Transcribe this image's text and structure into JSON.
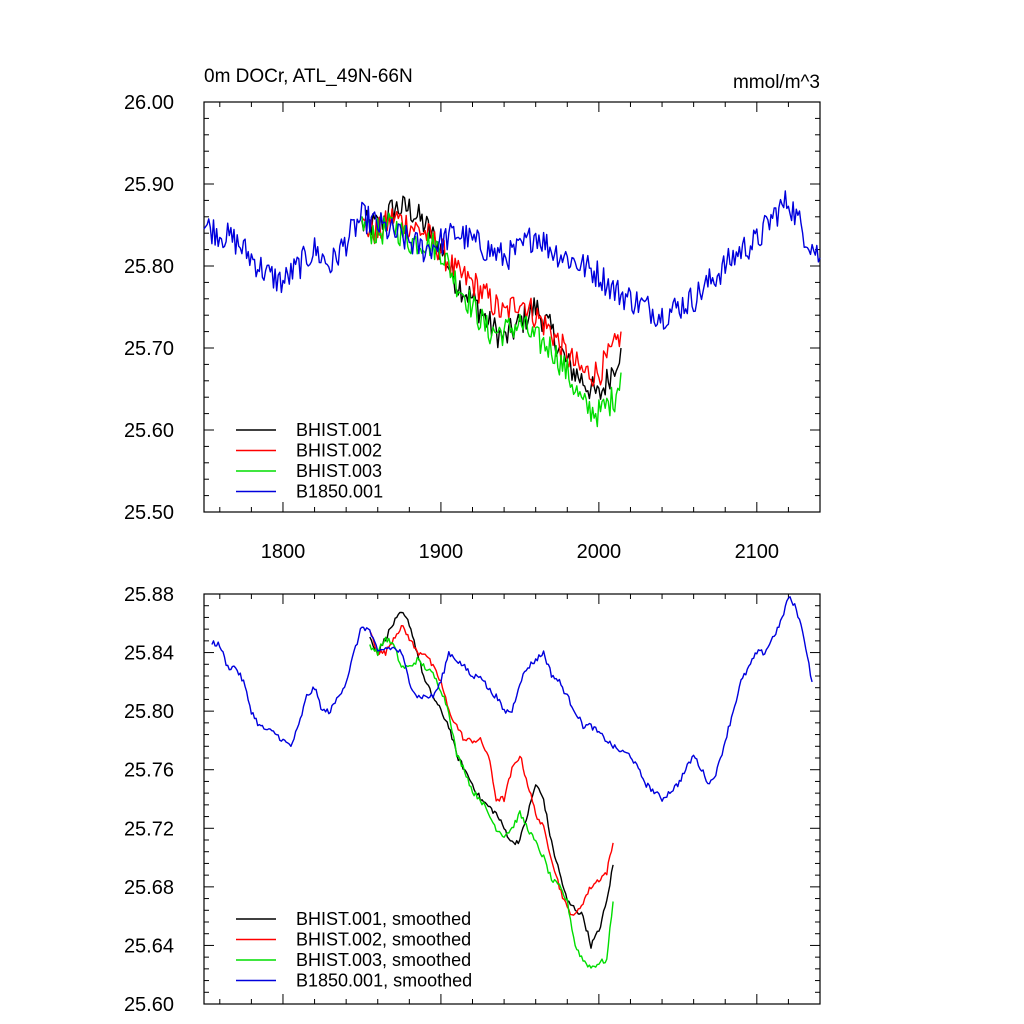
{
  "colors": {
    "BHIST.001": "#000000",
    "BHIST.002": "#ff0000",
    "BHIST.003": "#00dd00",
    "B1850.001": "#0000dd"
  },
  "chart_data": [
    {
      "type": "line",
      "title_left": "0m DOCr, ATL_49N-66N",
      "title_right": "mmol/m^3",
      "xlim": [
        1750,
        2140
      ],
      "ylim": [
        25.5,
        26.0
      ],
      "xticks": [
        1800,
        1900,
        2000,
        2100
      ],
      "xtick_labels": [
        "1800",
        "1900",
        "2000",
        "2100"
      ],
      "yticks": [
        25.5,
        25.6,
        25.7,
        25.8,
        25.9,
        26.0
      ],
      "ytick_labels": [
        "25.50",
        "25.60",
        "25.70",
        "25.80",
        "25.90",
        "26.00"
      ],
      "legend_position": "bottom-left",
      "noise": 0.018,
      "series": [
        {
          "name": "BHIST.001",
          "x": [
            1850,
            1860,
            1870,
            1880,
            1890,
            1900,
            1910,
            1920,
            1930,
            1940,
            1950,
            1960,
            1970,
            1980,
            1990,
            2000,
            2010,
            2014
          ],
          "values": [
            25.85,
            25.85,
            25.87,
            25.87,
            25.85,
            25.82,
            25.78,
            25.76,
            25.73,
            25.71,
            25.73,
            25.75,
            25.72,
            25.68,
            25.66,
            25.64,
            25.68,
            25.7
          ]
        },
        {
          "name": "BHIST.002",
          "x": [
            1850,
            1860,
            1870,
            1880,
            1890,
            1900,
            1910,
            1920,
            1930,
            1940,
            1950,
            1960,
            1970,
            1980,
            1990,
            2000,
            2010,
            2014
          ],
          "values": [
            25.85,
            25.84,
            25.86,
            25.85,
            25.84,
            25.82,
            25.79,
            25.78,
            25.76,
            25.74,
            25.76,
            25.74,
            25.72,
            25.69,
            25.67,
            25.67,
            25.7,
            25.72
          ]
        },
        {
          "name": "BHIST.003",
          "x": [
            1850,
            1860,
            1870,
            1880,
            1890,
            1900,
            1910,
            1920,
            1930,
            1940,
            1950,
            1960,
            1970,
            1980,
            1990,
            2000,
            2010,
            2014
          ],
          "values": [
            25.85,
            25.84,
            25.85,
            25.83,
            25.83,
            25.82,
            25.78,
            25.75,
            25.72,
            25.72,
            25.73,
            25.71,
            25.7,
            25.67,
            25.63,
            25.62,
            25.64,
            25.67
          ]
        },
        {
          "name": "B1850.001",
          "x": [
            1750,
            1760,
            1770,
            1780,
            1790,
            1800,
            1810,
            1820,
            1830,
            1840,
            1850,
            1860,
            1870,
            1880,
            1890,
            1900,
            1910,
            1920,
            1930,
            1940,
            1950,
            1960,
            1970,
            1980,
            1990,
            2000,
            2010,
            2020,
            2030,
            2040,
            2050,
            2060,
            2070,
            2080,
            2090,
            2100,
            2110,
            2120,
            2130,
            2140
          ],
          "values": [
            25.85,
            25.84,
            25.83,
            25.81,
            25.79,
            25.78,
            25.8,
            25.82,
            25.8,
            25.83,
            25.86,
            25.85,
            25.84,
            25.83,
            25.82,
            25.83,
            25.84,
            25.83,
            25.82,
            25.81,
            25.82,
            25.84,
            25.82,
            25.81,
            25.8,
            25.79,
            25.77,
            25.76,
            25.75,
            25.74,
            25.75,
            25.76,
            25.78,
            25.8,
            25.82,
            25.83,
            25.86,
            25.88,
            25.84,
            25.81
          ]
        }
      ]
    },
    {
      "type": "line",
      "xlim": [
        1750,
        2140
      ],
      "ylim": [
        25.6,
        25.88
      ],
      "xticks": [
        1800,
        1900,
        2000,
        2100
      ],
      "yticks": [
        25.6,
        25.64,
        25.68,
        25.72,
        25.76,
        25.8,
        25.84,
        25.88
      ],
      "ytick_labels": [
        "25.60",
        "25.64",
        "25.68",
        "25.72",
        "25.76",
        "25.80",
        "25.84",
        "25.88"
      ],
      "legend_position": "bottom-left",
      "noise": 0.002,
      "series": [
        {
          "name": "BHIST.001, smoothed",
          "x": [
            1855,
            1860,
            1865,
            1870,
            1875,
            1880,
            1885,
            1890,
            1895,
            1900,
            1905,
            1910,
            1915,
            1920,
            1925,
            1930,
            1935,
            1940,
            1945,
            1950,
            1955,
            1960,
            1965,
            1970,
            1975,
            1980,
            1985,
            1990,
            1995,
            2000,
            2005,
            2009
          ],
          "values": [
            25.85,
            25.84,
            25.85,
            25.86,
            25.867,
            25.86,
            25.84,
            25.82,
            25.81,
            25.8,
            25.79,
            25.77,
            25.76,
            25.75,
            25.74,
            25.735,
            25.73,
            25.72,
            25.71,
            25.712,
            25.73,
            25.75,
            25.74,
            25.71,
            25.69,
            25.67,
            25.665,
            25.66,
            25.64,
            25.65,
            25.67,
            25.695
          ]
        },
        {
          "name": "BHIST.002, smoothed",
          "x": [
            1855,
            1860,
            1865,
            1870,
            1875,
            1880,
            1885,
            1890,
            1895,
            1900,
            1905,
            1910,
            1915,
            1920,
            1925,
            1930,
            1935,
            1940,
            1945,
            1950,
            1955,
            1960,
            1965,
            1970,
            1975,
            1980,
            1985,
            1990,
            1995,
            2000,
            2005,
            2009
          ],
          "values": [
            25.855,
            25.84,
            25.84,
            25.85,
            25.858,
            25.85,
            25.84,
            25.84,
            25.83,
            25.82,
            25.8,
            25.79,
            25.78,
            25.78,
            25.78,
            25.77,
            25.74,
            25.74,
            25.76,
            25.77,
            25.75,
            25.73,
            25.72,
            25.7,
            25.68,
            25.665,
            25.66,
            25.67,
            25.68,
            25.685,
            25.69,
            25.71
          ]
        },
        {
          "name": "BHIST.003, smoothed",
          "x": [
            1855,
            1860,
            1865,
            1870,
            1875,
            1880,
            1885,
            1890,
            1895,
            1900,
            1905,
            1910,
            1915,
            1920,
            1925,
            1930,
            1935,
            1940,
            1945,
            1950,
            1955,
            1960,
            1965,
            1970,
            1975,
            1980,
            1985,
            1990,
            1995,
            2000,
            2005,
            2009
          ],
          "values": [
            25.845,
            25.84,
            25.85,
            25.845,
            25.83,
            25.83,
            25.835,
            25.83,
            25.825,
            25.815,
            25.8,
            25.77,
            25.76,
            25.745,
            25.74,
            25.73,
            25.72,
            25.715,
            25.72,
            25.73,
            25.72,
            25.71,
            25.7,
            25.685,
            25.68,
            25.67,
            25.64,
            25.63,
            25.625,
            25.628,
            25.63,
            25.67
          ]
        },
        {
          "name": "B1850.001, smoothed",
          "x": [
            1755,
            1760,
            1765,
            1770,
            1775,
            1780,
            1785,
            1790,
            1795,
            1800,
            1805,
            1810,
            1815,
            1820,
            1825,
            1830,
            1835,
            1840,
            1845,
            1850,
            1855,
            1860,
            1865,
            1870,
            1875,
            1880,
            1885,
            1890,
            1895,
            1900,
            1905,
            1910,
            1915,
            1920,
            1925,
            1930,
            1935,
            1940,
            1945,
            1950,
            1955,
            1960,
            1965,
            1970,
            1975,
            1980,
            1985,
            1990,
            1995,
            2000,
            2005,
            2010,
            2015,
            2020,
            2025,
            2030,
            2035,
            2040,
            2045,
            2050,
            2055,
            2060,
            2065,
            2070,
            2075,
            2080,
            2085,
            2090,
            2095,
            2100,
            2105,
            2110,
            2115,
            2120,
            2125,
            2130,
            2135
          ],
          "values": [
            25.847,
            25.845,
            25.83,
            25.83,
            25.82,
            25.8,
            25.79,
            25.787,
            25.785,
            25.78,
            25.776,
            25.79,
            25.81,
            25.816,
            25.8,
            25.8,
            25.81,
            25.82,
            25.84,
            25.858,
            25.855,
            25.84,
            25.843,
            25.843,
            25.84,
            25.82,
            25.81,
            25.81,
            25.81,
            25.82,
            25.84,
            25.835,
            25.83,
            25.823,
            25.825,
            25.815,
            25.81,
            25.8,
            25.8,
            25.82,
            25.83,
            25.835,
            25.84,
            25.825,
            25.82,
            25.81,
            25.8,
            25.79,
            25.79,
            25.785,
            25.78,
            25.775,
            25.772,
            25.77,
            25.76,
            25.75,
            25.745,
            25.74,
            25.745,
            25.75,
            25.76,
            25.77,
            25.76,
            25.75,
            25.76,
            25.78,
            25.8,
            25.82,
            25.83,
            25.84,
            25.84,
            25.85,
            25.86,
            25.878,
            25.87,
            25.85,
            25.82
          ]
        }
      ]
    }
  ]
}
